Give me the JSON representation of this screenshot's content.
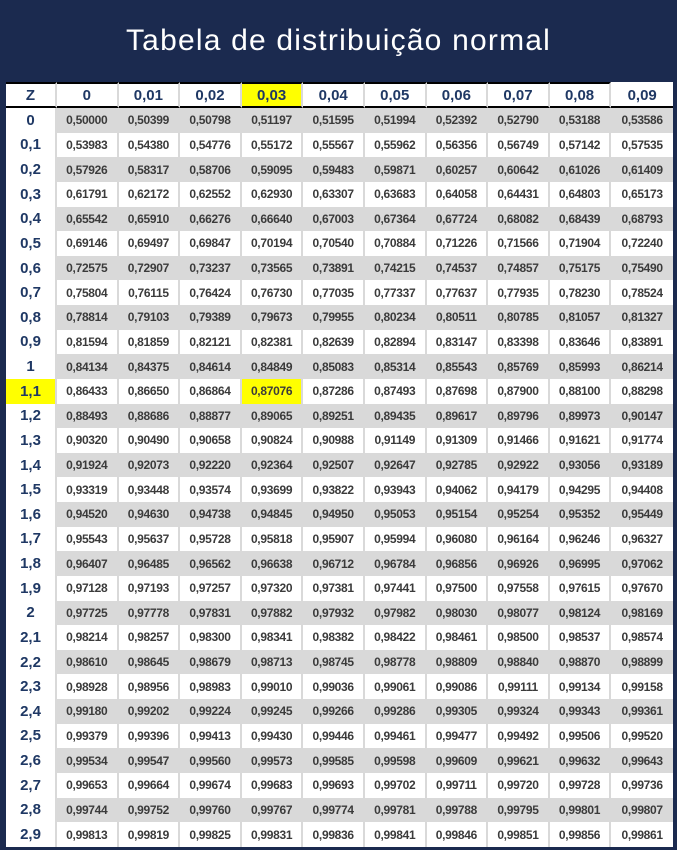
{
  "title": "Tabela de distribuição normal",
  "colors": {
    "banner_background": "#1b2a4f",
    "header_text": "#1f3864",
    "data_text": "#3b3b3b",
    "stripe_gray": "#d9d9d9",
    "highlight_yellow": "#ffff00",
    "header_border": "#000000",
    "title_text": "#ffffff"
  },
  "table": {
    "corner_header": "Z",
    "col_headers": [
      "0",
      "0,01",
      "0,02",
      "0,03",
      "0,04",
      "0,05",
      "0,06",
      "0,07",
      "0,08",
      "0,09"
    ],
    "highlight": {
      "col_index": 3,
      "row_index": 11,
      "highlighted_col_header": "0,03",
      "highlighted_row_label": "1,1",
      "highlighted_cell_value": "0,87076"
    },
    "rows": [
      {
        "z": "0",
        "values": [
          "0,50000",
          "0,50399",
          "0,50798",
          "0,51197",
          "0,51595",
          "0,51994",
          "0,52392",
          "0,52790",
          "0,53188",
          "0,53586"
        ]
      },
      {
        "z": "0,1",
        "values": [
          "0,53983",
          "0,54380",
          "0,54776",
          "0,55172",
          "0,55567",
          "0,55962",
          "0,56356",
          "0,56749",
          "0,57142",
          "0,57535"
        ]
      },
      {
        "z": "0,2",
        "values": [
          "0,57926",
          "0,58317",
          "0,58706",
          "0,59095",
          "0,59483",
          "0,59871",
          "0,60257",
          "0,60642",
          "0,61026",
          "0,61409"
        ]
      },
      {
        "z": "0,3",
        "values": [
          "0,61791",
          "0,62172",
          "0,62552",
          "0,62930",
          "0,63307",
          "0,63683",
          "0,64058",
          "0,64431",
          "0,64803",
          "0,65173"
        ]
      },
      {
        "z": "0,4",
        "values": [
          "0,65542",
          "0,65910",
          "0,66276",
          "0,66640",
          "0,67003",
          "0,67364",
          "0,67724",
          "0,68082",
          "0,68439",
          "0,68793"
        ]
      },
      {
        "z": "0,5",
        "values": [
          "0,69146",
          "0,69497",
          "0,69847",
          "0,70194",
          "0,70540",
          "0,70884",
          "0,71226",
          "0,71566",
          "0,71904",
          "0,72240"
        ]
      },
      {
        "z": "0,6",
        "values": [
          "0,72575",
          "0,72907",
          "0,73237",
          "0,73565",
          "0,73891",
          "0,74215",
          "0,74537",
          "0,74857",
          "0,75175",
          "0,75490"
        ]
      },
      {
        "z": "0,7",
        "values": [
          "0,75804",
          "0,76115",
          "0,76424",
          "0,76730",
          "0,77035",
          "0,77337",
          "0,77637",
          "0,77935",
          "0,78230",
          "0,78524"
        ]
      },
      {
        "z": "0,8",
        "values": [
          "0,78814",
          "0,79103",
          "0,79389",
          "0,79673",
          "0,79955",
          "0,80234",
          "0,80511",
          "0,80785",
          "0,81057",
          "0,81327"
        ]
      },
      {
        "z": "0,9",
        "values": [
          "0,81594",
          "0,81859",
          "0,82121",
          "0,82381",
          "0,82639",
          "0,82894",
          "0,83147",
          "0,83398",
          "0,83646",
          "0,83891"
        ]
      },
      {
        "z": "1",
        "values": [
          "0,84134",
          "0,84375",
          "0,84614",
          "0,84849",
          "0,85083",
          "0,85314",
          "0,85543",
          "0,85769",
          "0,85993",
          "0,86214"
        ]
      },
      {
        "z": "1,1",
        "values": [
          "0,86433",
          "0,86650",
          "0,86864",
          "0,87076",
          "0,87286",
          "0,87493",
          "0,87698",
          "0,87900",
          "0,88100",
          "0,88298"
        ]
      },
      {
        "z": "1,2",
        "values": [
          "0,88493",
          "0,88686",
          "0,88877",
          "0,89065",
          "0,89251",
          "0,89435",
          "0,89617",
          "0,89796",
          "0,89973",
          "0,90147"
        ]
      },
      {
        "z": "1,3",
        "values": [
          "0,90320",
          "0,90490",
          "0,90658",
          "0,90824",
          "0,90988",
          "0,91149",
          "0,91309",
          "0,91466",
          "0,91621",
          "0,91774"
        ]
      },
      {
        "z": "1,4",
        "values": [
          "0,91924",
          "0,92073",
          "0,92220",
          "0,92364",
          "0,92507",
          "0,92647",
          "0,92785",
          "0,92922",
          "0,93056",
          "0,93189"
        ]
      },
      {
        "z": "1,5",
        "values": [
          "0,93319",
          "0,93448",
          "0,93574",
          "0,93699",
          "0,93822",
          "0,93943",
          "0,94062",
          "0,94179",
          "0,94295",
          "0,94408"
        ]
      },
      {
        "z": "1,6",
        "values": [
          "0,94520",
          "0,94630",
          "0,94738",
          "0,94845",
          "0,94950",
          "0,95053",
          "0,95154",
          "0,95254",
          "0,95352",
          "0,95449"
        ]
      },
      {
        "z": "1,7",
        "values": [
          "0,95543",
          "0,95637",
          "0,95728",
          "0,95818",
          "0,95907",
          "0,95994",
          "0,96080",
          "0,96164",
          "0,96246",
          "0,96327"
        ]
      },
      {
        "z": "1,8",
        "values": [
          "0,96407",
          "0,96485",
          "0,96562",
          "0,96638",
          "0,96712",
          "0,96784",
          "0,96856",
          "0,96926",
          "0,96995",
          "0,97062"
        ]
      },
      {
        "z": "1,9",
        "values": [
          "0,97128",
          "0,97193",
          "0,97257",
          "0,97320",
          "0,97381",
          "0,97441",
          "0,97500",
          "0,97558",
          "0,97615",
          "0,97670"
        ]
      },
      {
        "z": "2",
        "values": [
          "0,97725",
          "0,97778",
          "0,97831",
          "0,97882",
          "0,97932",
          "0,97982",
          "0,98030",
          "0,98077",
          "0,98124",
          "0,98169"
        ]
      },
      {
        "z": "2,1",
        "values": [
          "0,98214",
          "0,98257",
          "0,98300",
          "0,98341",
          "0,98382",
          "0,98422",
          "0,98461",
          "0,98500",
          "0,98537",
          "0,98574"
        ]
      },
      {
        "z": "2,2",
        "values": [
          "0,98610",
          "0,98645",
          "0,98679",
          "0,98713",
          "0,98745",
          "0,98778",
          "0,98809",
          "0,98840",
          "0,98870",
          "0,98899"
        ]
      },
      {
        "z": "2,3",
        "values": [
          "0,98928",
          "0,98956",
          "0,98983",
          "0,99010",
          "0,99036",
          "0,99061",
          "0,99086",
          "0,99111",
          "0,99134",
          "0,99158"
        ]
      },
      {
        "z": "2,4",
        "values": [
          "0,99180",
          "0,99202",
          "0,99224",
          "0,99245",
          "0,99266",
          "0,99286",
          "0,99305",
          "0,99324",
          "0,99343",
          "0,99361"
        ]
      },
      {
        "z": "2,5",
        "values": [
          "0,99379",
          "0,99396",
          "0,99413",
          "0,99430",
          "0,99446",
          "0,99461",
          "0,99477",
          "0,99492",
          "0,99506",
          "0,99520"
        ]
      },
      {
        "z": "2,6",
        "values": [
          "0,99534",
          "0,99547",
          "0,99560",
          "0,99573",
          "0,99585",
          "0,99598",
          "0,99609",
          "0,99621",
          "0,99632",
          "0,99643"
        ]
      },
      {
        "z": "2,7",
        "values": [
          "0,99653",
          "0,99664",
          "0,99674",
          "0,99683",
          "0,99693",
          "0,99702",
          "0,99711",
          "0,99720",
          "0,99728",
          "0,99736"
        ]
      },
      {
        "z": "2,8",
        "values": [
          "0,99744",
          "0,99752",
          "0,99760",
          "0,99767",
          "0,99774",
          "0,99781",
          "0,99788",
          "0,99795",
          "0,99801",
          "0,99807"
        ]
      },
      {
        "z": "2,9",
        "values": [
          "0,99813",
          "0,99819",
          "0,99825",
          "0,99831",
          "0,99836",
          "0,99841",
          "0,99846",
          "0,99851",
          "0,99856",
          "0,99861"
        ]
      }
    ]
  }
}
